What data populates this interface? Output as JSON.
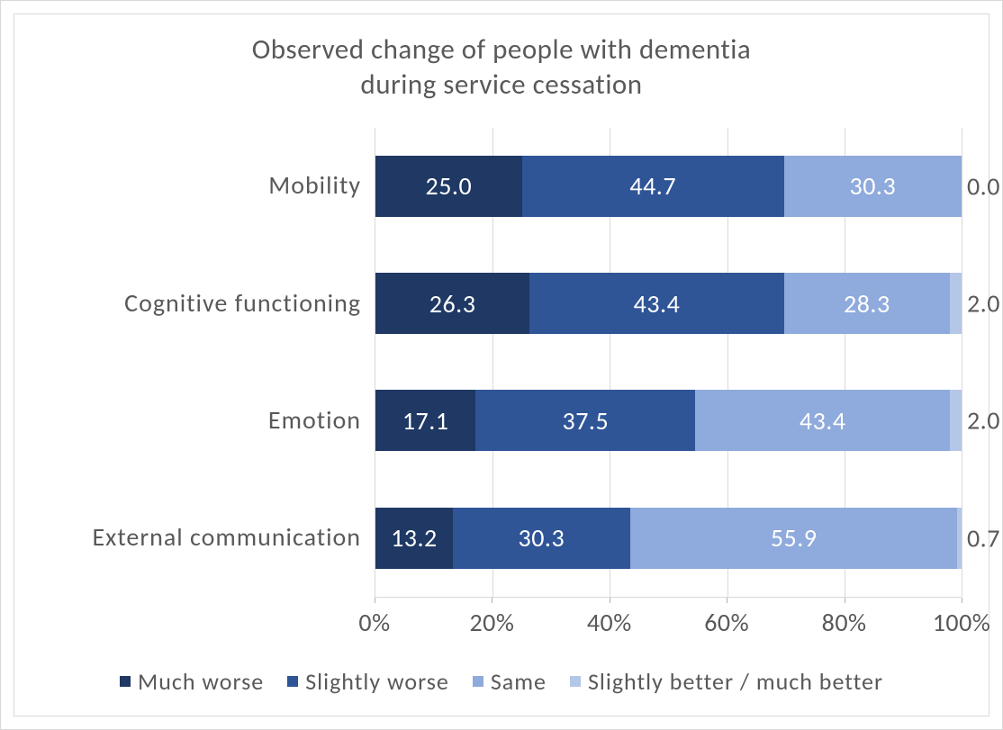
{
  "chart": {
    "type": "stacked-bar-100",
    "title_line1": "Observed change of people with dementia",
    "title_line2": "during service cessation",
    "title_fontsize": 31,
    "title_color": "#595959",
    "background_color": "#ffffff",
    "border_color": "#d9d9d9",
    "grid_color": "#d9d9d9",
    "text_color": "#595959",
    "label_fontsize": 28,
    "tick_fontsize": 28,
    "value_fontsize": 28,
    "legend_fontsize": 26,
    "x_ticks": [
      0,
      20,
      40,
      60,
      80,
      100
    ],
    "x_tick_suffix": "%",
    "categories": [
      {
        "label": "Mobility",
        "values": [
          25.0,
          44.7,
          30.3,
          0.0
        ]
      },
      {
        "label": "Cognitive functioning",
        "values": [
          26.3,
          43.4,
          28.3,
          2.0
        ]
      },
      {
        "label": "Emotion",
        "values": [
          17.1,
          37.5,
          43.4,
          2.0
        ]
      },
      {
        "label": "External communication",
        "values": [
          13.2,
          30.3,
          55.9,
          0.7
        ]
      }
    ],
    "series": [
      {
        "name": "Much worse",
        "color": "#1f3864"
      },
      {
        "name": "Slightly worse",
        "color": "#2f5597"
      },
      {
        "name": "Same",
        "color": "#8faadc"
      },
      {
        "name": "Slightly better / much better",
        "color": "#b4c7e7"
      }
    ]
  }
}
